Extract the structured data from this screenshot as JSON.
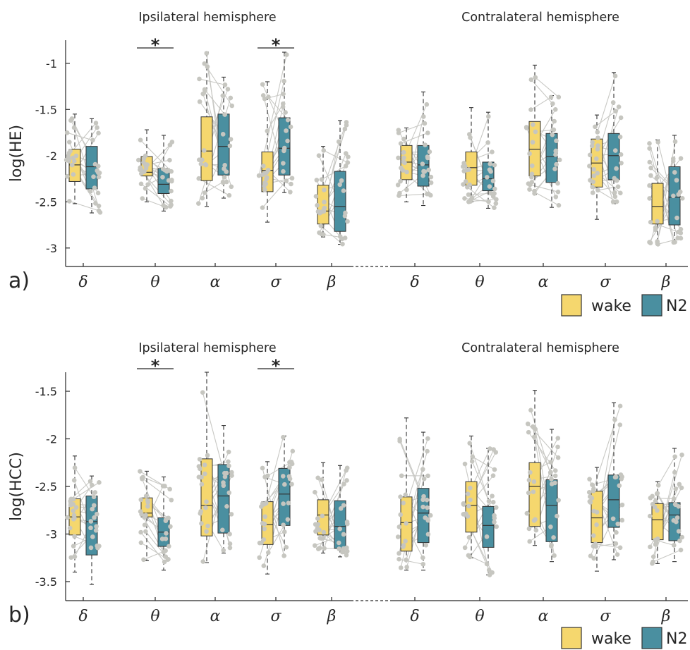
{
  "colors": {
    "wake": "#f5d76e",
    "n2": "#4a8fa0"
  },
  "legend": {
    "wake_label": "wake",
    "n2_label": "N2"
  },
  "chart_data": [
    {
      "type": "box",
      "panel_label": "a)",
      "ylabel": "log(HE)",
      "ylim": [
        -3.2,
        -0.75
      ],
      "yticks": [
        -1,
        -1.5,
        -2,
        -2.5,
        -3
      ],
      "ytick_labels": [
        "-1",
        "-1.5",
        "-2",
        "-2.5",
        "-3"
      ],
      "groups": [
        {
          "title": "Ipsilateral hemisphere",
          "categories": [
            {
              "label": "δ",
              "wake": {
                "q1": -2.28,
                "median": -2.1,
                "q3": -1.93,
                "whislo": -2.52,
                "whishi": -1.55
              },
              "n2": {
                "q1": -2.36,
                "median": -2.12,
                "q3": -1.9,
                "whislo": -2.62,
                "whishi": -1.6
              },
              "sig": false
            },
            {
              "label": "θ",
              "wake": {
                "q1": -2.22,
                "median": -2.18,
                "q3": -2.01,
                "whislo": -2.5,
                "whishi": -1.72
              },
              "n2": {
                "q1": -2.41,
                "median": -2.31,
                "q3": -2.14,
                "whislo": -2.6,
                "whishi": -1.78
              },
              "sig": true
            },
            {
              "label": "α",
              "wake": {
                "q1": -2.27,
                "median": -1.95,
                "q3": -1.58,
                "whislo": -2.55,
                "whishi": -0.88
              },
              "n2": {
                "q1": -2.21,
                "median": -1.9,
                "q3": -1.55,
                "whislo": -2.46,
                "whishi": -1.15
              },
              "sig": false
            },
            {
              "label": "σ",
              "wake": {
                "q1": -2.39,
                "median": -2.16,
                "q3": -1.96,
                "whislo": -2.72,
                "whishi": -1.2
              },
              "n2": {
                "q1": -2.21,
                "median": -1.92,
                "q3": -1.59,
                "whislo": -2.4,
                "whishi": -0.88
              },
              "sig": true
            },
            {
              "label": "β",
              "wake": {
                "q1": -2.74,
                "median": -2.6,
                "q3": -2.32,
                "whislo": -2.88,
                "whishi": -1.9
              },
              "n2": {
                "q1": -2.82,
                "median": -2.55,
                "q3": -2.17,
                "whislo": -2.96,
                "whishi": -1.62
              },
              "sig": false
            }
          ]
        },
        {
          "title": "Contralateral hemisphere",
          "categories": [
            {
              "label": "δ",
              "wake": {
                "q1": -2.26,
                "median": -2.07,
                "q3": -1.89,
                "whislo": -2.5,
                "whishi": -1.7
              },
              "n2": {
                "q1": -2.33,
                "median": -2.1,
                "q3": -1.89,
                "whislo": -2.54,
                "whishi": -1.31
              },
              "sig": false
            },
            {
              "label": "θ",
              "wake": {
                "q1": -2.32,
                "median": -2.13,
                "q3": -1.96,
                "whislo": -2.5,
                "whishi": -1.48
              },
              "n2": {
                "q1": -2.38,
                "median": -2.25,
                "q3": -2.07,
                "whislo": -2.57,
                "whishi": -1.53
              },
              "sig": false
            },
            {
              "label": "α",
              "wake": {
                "q1": -2.22,
                "median": -1.93,
                "q3": -1.63,
                "whislo": -2.42,
                "whishi": -1.02
              },
              "n2": {
                "q1": -2.29,
                "median": -2.01,
                "q3": -1.76,
                "whislo": -2.56,
                "whishi": -1.35
              },
              "sig": false
            },
            {
              "label": "σ",
              "wake": {
                "q1": -2.34,
                "median": -2.08,
                "q3": -1.82,
                "whislo": -2.69,
                "whishi": -1.56
              },
              "n2": {
                "q1": -2.26,
                "median": -2.0,
                "q3": -1.76,
                "whislo": -2.52,
                "whishi": -1.1
              },
              "sig": false
            },
            {
              "label": "β",
              "wake": {
                "q1": -2.74,
                "median": -2.55,
                "q3": -2.3,
                "whislo": -2.96,
                "whishi": -1.83
              },
              "n2": {
                "q1": -2.75,
                "median": -2.45,
                "q3": -2.12,
                "whislo": -2.94,
                "whishi": -1.78
              },
              "sig": false
            }
          ]
        }
      ]
    },
    {
      "type": "box",
      "panel_label": "b)",
      "ylabel": "log(HCC)",
      "ylim": [
        -3.7,
        -1.3
      ],
      "yticks": [
        -1.5,
        -2,
        -2.5,
        -3,
        -3.5
      ],
      "ytick_labels": [
        "-1.5",
        "-2",
        "-2.5",
        "-3",
        "-3.5"
      ],
      "groups": [
        {
          "title": "Ipsilateral hemisphere",
          "categories": [
            {
              "label": "δ",
              "wake": {
                "q1": -3.01,
                "median": -2.82,
                "q3": -2.63,
                "whislo": -3.4,
                "whishi": -2.18
              },
              "n2": {
                "q1": -3.22,
                "median": -2.87,
                "q3": -2.6,
                "whislo": -3.53,
                "whishi": -2.39
              },
              "sig": false
            },
            {
              "label": "θ",
              "wake": {
                "q1": -2.82,
                "median": -2.78,
                "q3": -2.62,
                "whislo": -3.28,
                "whishi": -2.34
              },
              "n2": {
                "q1": -3.13,
                "median": -2.98,
                "q3": -2.83,
                "whislo": -3.38,
                "whishi": -2.4
              },
              "sig": true
            },
            {
              "label": "α",
              "wake": {
                "q1": -3.02,
                "median": -2.7,
                "q3": -2.21,
                "whislo": -3.3,
                "whishi": -1.3
              },
              "n2": {
                "q1": -2.99,
                "median": -2.6,
                "q3": -2.27,
                "whislo": -3.2,
                "whishi": -1.86
              },
              "sig": false
            },
            {
              "label": "σ",
              "wake": {
                "q1": -3.11,
                "median": -2.9,
                "q3": -2.66,
                "whislo": -3.42,
                "whishi": -2.24
              },
              "n2": {
                "q1": -2.91,
                "median": -2.58,
                "q3": -2.31,
                "whislo": -3.23,
                "whishi": -1.97
              },
              "sig": true
            },
            {
              "label": "β",
              "wake": {
                "q1": -3.01,
                "median": -2.8,
                "q3": -2.64,
                "whislo": -3.2,
                "whishi": -2.25
              },
              "n2": {
                "q1": -3.15,
                "median": -2.92,
                "q3": -2.65,
                "whislo": -3.24,
                "whishi": -2.28
              },
              "sig": false
            }
          ]
        },
        {
          "title": "Contralateral hemisphere",
          "categories": [
            {
              "label": "δ",
              "wake": {
                "q1": -3.18,
                "median": -2.88,
                "q3": -2.61,
                "whislo": -3.38,
                "whishi": -1.78
              },
              "n2": {
                "q1": -3.09,
                "median": -2.78,
                "q3": -2.52,
                "whislo": -3.38,
                "whishi": -1.93
              },
              "sig": false
            },
            {
              "label": "θ",
              "wake": {
                "q1": -2.98,
                "median": -2.7,
                "q3": -2.45,
                "whislo": -3.25,
                "whishi": -1.97
              },
              "n2": {
                "q1": -3.14,
                "median": -2.91,
                "q3": -2.71,
                "whislo": -3.43,
                "whishi": -2.1
              },
              "sig": false
            },
            {
              "label": "α",
              "wake": {
                "q1": -2.92,
                "median": -2.5,
                "q3": -2.25,
                "whislo": -3.12,
                "whishi": -1.49
              },
              "n2": {
                "q1": -3.08,
                "median": -2.7,
                "q3": -2.43,
                "whislo": -3.29,
                "whishi": -1.9
              },
              "sig": false
            },
            {
              "label": "σ",
              "wake": {
                "q1": -3.09,
                "median": -2.83,
                "q3": -2.55,
                "whislo": -3.39,
                "whishi": -2.3
              },
              "n2": {
                "q1": -2.93,
                "median": -2.64,
                "q3": -2.38,
                "whislo": -3.27,
                "whishi": -1.62
              },
              "sig": false
            },
            {
              "label": "β",
              "wake": {
                "q1": -3.06,
                "median": -2.85,
                "q3": -2.68,
                "whislo": -3.31,
                "whishi": -2.45
              },
              "n2": {
                "q1": -3.07,
                "median": -2.8,
                "q3": -2.67,
                "whislo": -3.29,
                "whishi": -2.1
              },
              "sig": false
            }
          ]
        }
      ]
    }
  ]
}
